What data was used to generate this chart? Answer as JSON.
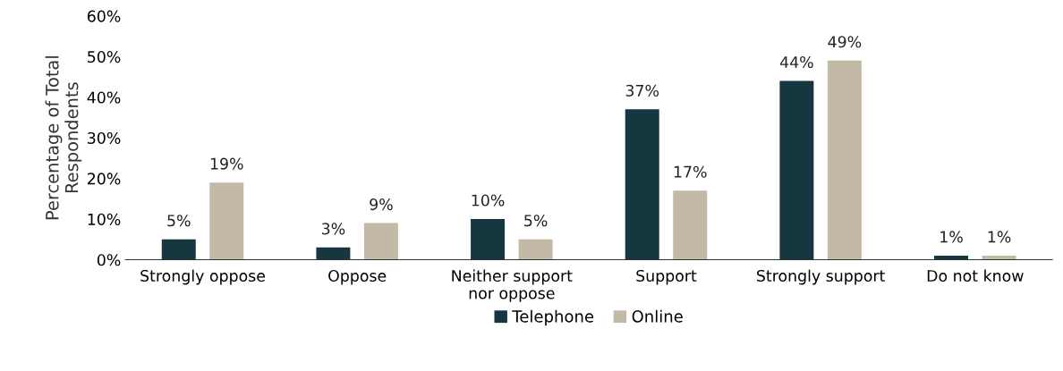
{
  "chart_data": {
    "type": "bar",
    "ylabel": "Percentage of Total\nRespondents",
    "categories": [
      "Strongly oppose",
      "Oppose",
      "Neither support\nnor oppose",
      "Support",
      "Strongly support",
      "Do not know"
    ],
    "series": [
      {
        "name": "Telephone",
        "color": "#163640",
        "values": [
          5,
          3,
          10,
          37,
          44,
          1
        ],
        "value_labels": [
          "5%",
          "3%",
          "10%",
          "37%",
          "44%",
          "1%"
        ]
      },
      {
        "name": "Online",
        "color": "#c2b9a7",
        "values": [
          19,
          9,
          5,
          17,
          49,
          1
        ],
        "value_labels": [
          "19%",
          "9%",
          "5%",
          "17%",
          "49%",
          "1%"
        ]
      }
    ],
    "ylim": [
      0,
      60
    ],
    "yticks": [
      {
        "value": 0,
        "label": "0%"
      },
      {
        "value": 10,
        "label": "10%"
      },
      {
        "value": 20,
        "label": "20%"
      },
      {
        "value": 30,
        "label": "30%"
      },
      {
        "value": 40,
        "label": "40%"
      },
      {
        "value": 50,
        "label": "50%"
      },
      {
        "value": 60,
        "label": "60%"
      }
    ],
    "grid": false,
    "legend": "bottom"
  }
}
